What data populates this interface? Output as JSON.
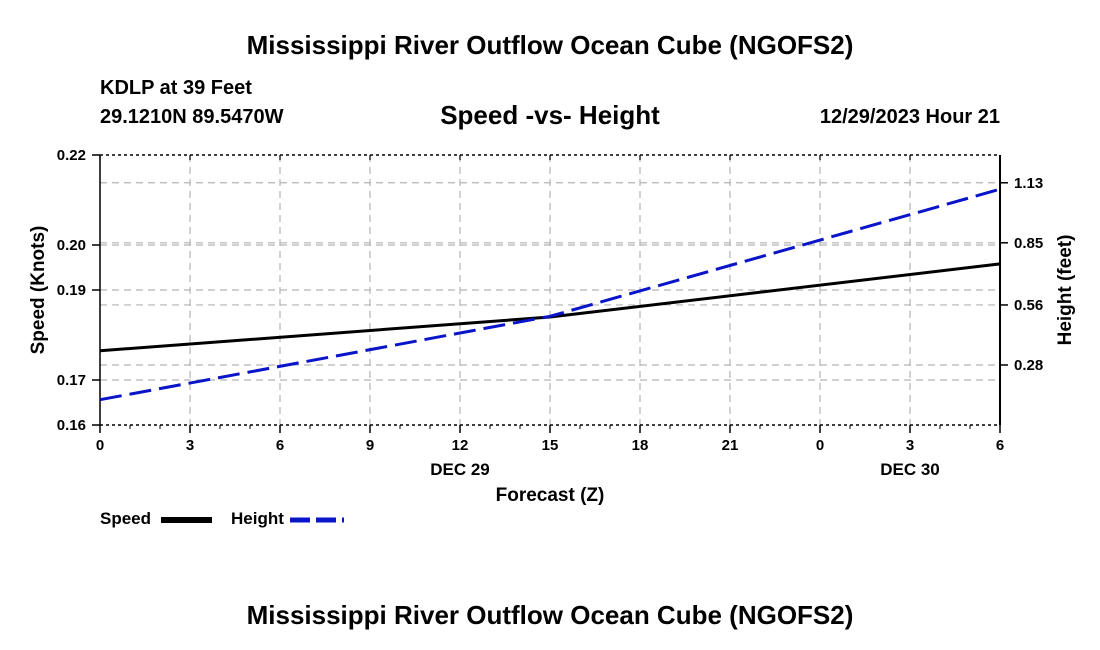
{
  "header": {
    "title": "Mississippi River Outflow Ocean Cube (NGOFS2)",
    "station": "KDLP at 39 Feet",
    "coords": "29.1210N  89.5470W",
    "date": "12/29/2023 Hour 21"
  },
  "footer": {
    "title": "Mississippi River Outflow Ocean Cube (NGOFS2)"
  },
  "legend": {
    "speed_label": "Speed",
    "height_label": "Height"
  },
  "colors": {
    "speed": "#000000",
    "height": "#0a14c8",
    "grid": "#b4b4b4"
  },
  "chart_data": {
    "type": "line",
    "title": "Speed -vs- Height",
    "xlabel": "Forecast (Z)",
    "ylabel_left": "Speed (Knots)",
    "ylabel_right": "Height (feet)",
    "x_hours": [
      0,
      3,
      6,
      9,
      12,
      15,
      18,
      21,
      24,
      27,
      30
    ],
    "x_tick_labels": [
      "0",
      "3",
      "6",
      "9",
      "12",
      "15",
      "18",
      "21",
      "0",
      "3",
      "6"
    ],
    "date_labels": [
      {
        "text": "DEC 29",
        "hour": 12
      },
      {
        "text": "DEC 30",
        "hour": 27
      }
    ],
    "xlim": [
      0,
      30
    ],
    "y_left": {
      "range": [
        0.16,
        0.22
      ],
      "ticks": [
        0.16,
        0.17,
        0.19,
        0.2,
        0.22
      ],
      "tick_labels": [
        "0.16",
        "0.17",
        "0.19",
        "0.20",
        "0.22"
      ]
    },
    "y_right": {
      "range": [
        0.0,
        1.2596
      ],
      "ticks": [
        0.28,
        0.56,
        0.85,
        1.13
      ],
      "tick_labels": [
        "0.28",
        "0.56",
        "0.85",
        "1.13"
      ]
    },
    "series": [
      {
        "name": "Speed",
        "axis": "left",
        "style": "solid",
        "points": [
          [
            0,
            0.1765
          ],
          [
            15,
            0.184
          ],
          [
            30,
            0.1958
          ]
        ]
      },
      {
        "name": "Height",
        "axis": "right",
        "style": "dashed",
        "points": [
          [
            0,
            0.118
          ],
          [
            15,
            0.507
          ],
          [
            30,
            1.1
          ]
        ]
      }
    ],
    "grid": true
  }
}
